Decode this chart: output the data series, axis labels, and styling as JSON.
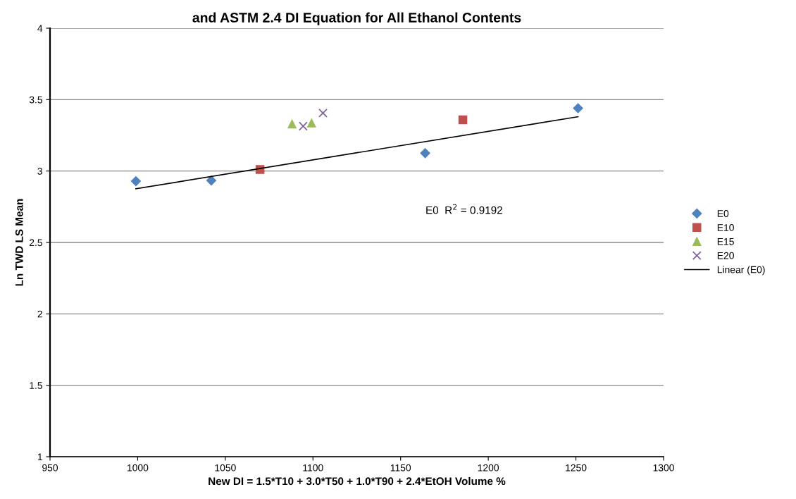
{
  "chart_data": {
    "type": "scatter",
    "title": "and ASTM 2.4 DI Equation for All Ethanol Contents",
    "xlabel": "New DI = 1.5*T10 + 3.0*T50 + 1.0*T90 + 2.4*EtOH Volume %",
    "ylabel": "Ln TWD LS Mean",
    "series": [
      {
        "name": "E0",
        "color": "#4f81bd",
        "marker": "diamond",
        "x": [
          999.0,
          1042.0,
          1164.0,
          1251.2
        ],
        "values": [
          2.929,
          2.934,
          3.125,
          3.44
        ]
      },
      {
        "name": "E10",
        "color": "#c0504d",
        "marker": "square",
        "x": [
          1069.8,
          1185.5
        ],
        "values": [
          3.011,
          3.358
        ]
      },
      {
        "name": "E15",
        "color": "#9bbb59",
        "marker": "triangle",
        "x": [
          1088.1,
          1099.2
        ],
        "values": [
          3.329,
          3.336
        ]
      },
      {
        "name": "E20",
        "color": "#8064a2",
        "marker": "cross",
        "x": [
          1094.4,
          1105.7
        ],
        "values": [
          3.314,
          3.406
        ]
      },
      {
        "name": "Linear (E0)",
        "type": "line",
        "color": "#000000",
        "marker": "none",
        "x": [
          999.0,
          1251.2
        ],
        "values": [
          2.876,
          3.38
        ]
      }
    ],
    "annotations": [
      "E0  R$^{2}$ = 0.9192"
    ],
    "xlim": [
      950,
      1300
    ],
    "xticks": [
      950,
      1000,
      1050,
      1100,
      1150,
      1200,
      1250,
      1300
    ],
    "ylim": [
      1,
      4
    ],
    "yticks": [
      1,
      1.5,
      2,
      2.5,
      3,
      3.5,
      4
    ],
    "grid": "y",
    "legend": "right"
  }
}
